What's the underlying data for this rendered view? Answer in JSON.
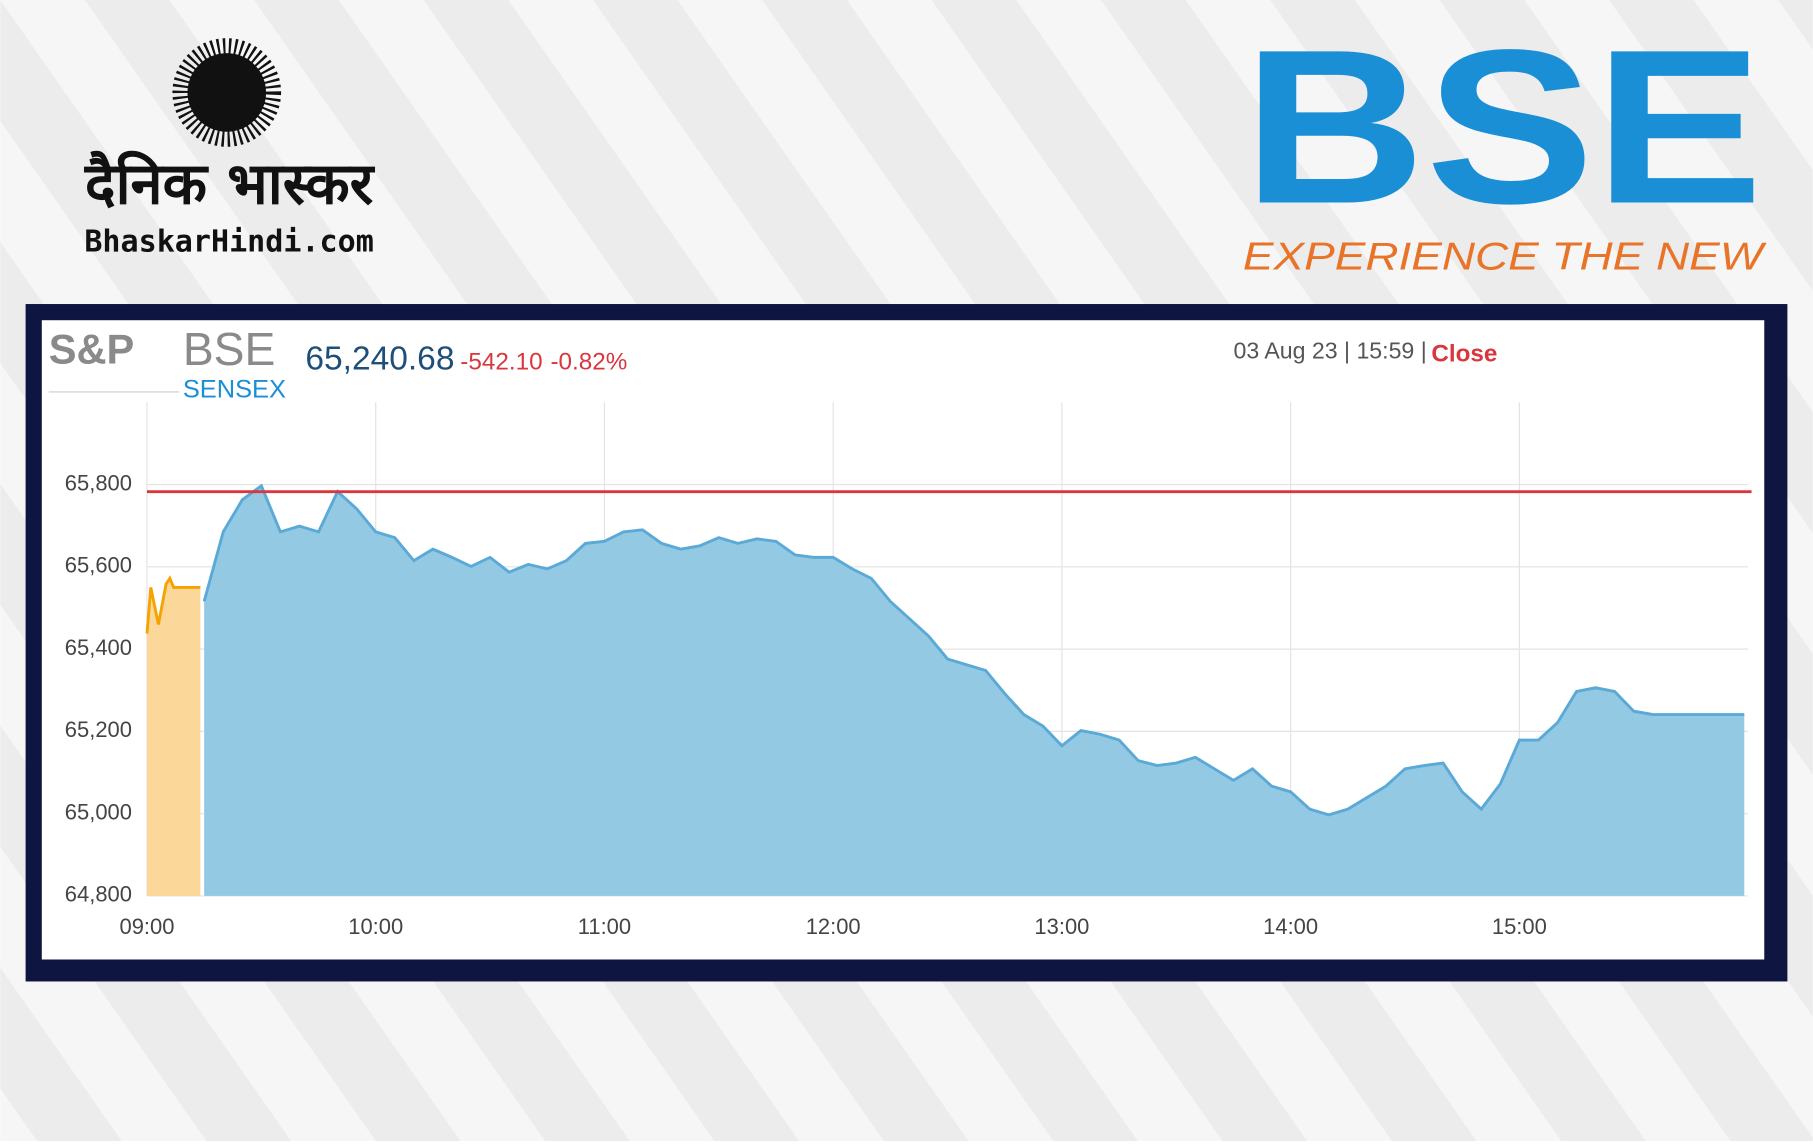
{
  "header": {
    "brand_hindi": "दैनिक भास्कर",
    "brand_site": "BhaskarHindi.com",
    "bse_logo": "BSE",
    "bse_tagline": "EXPERIENCE THE NEW"
  },
  "chart_data": {
    "type": "area",
    "logo_left": "S&P",
    "logo_right": "BSE",
    "logo_sub": "SENSEX",
    "last_value": "65,240.68",
    "change": "-542.10",
    "change_percent": "-0.82%",
    "timestamp": "03 Aug 23 | 15:59 |",
    "status": "Close",
    "xlim": [
      "09:00",
      "16:00"
    ],
    "xticks": [
      "09:00",
      "10:00",
      "11:00",
      "12:00",
      "13:00",
      "14:00",
      "15:00"
    ],
    "ylim": [
      64800,
      66000
    ],
    "yticks": [
      {
        "value": 64800,
        "label": "64,800"
      },
      {
        "value": 65000,
        "label": "65,000"
      },
      {
        "value": 65200,
        "label": "65,200"
      },
      {
        "value": 65400,
        "label": "65,400"
      },
      {
        "value": 65600,
        "label": "65,600"
      },
      {
        "value": 65800,
        "label": "65,800"
      }
    ],
    "grid": true,
    "reference_line": {
      "value": 65782.78,
      "color": "#d9363e"
    },
    "series": [
      {
        "color": "#f5a300",
        "fill": "#fbd79a",
        "x": [
          "09:00",
          "09:01",
          "09:03",
          "09:05",
          "09:06",
          "09:07",
          "09:14"
        ],
        "values": [
          65438,
          65550,
          65460,
          65558,
          65572,
          65550,
          65550
        ]
      },
      {
        "color": "#5aa9d6",
        "fill": "#93c9e3",
        "x": [
          "09:15",
          "09:20",
          "09:25",
          "09:30",
          "09:35",
          "09:40",
          "09:45",
          "09:50",
          "09:55",
          "10:00",
          "10:05",
          "10:10",
          "10:15",
          "10:20",
          "10:25",
          "10:30",
          "10:35",
          "10:40",
          "10:45",
          "10:50",
          "10:55",
          "11:00",
          "11:05",
          "11:10",
          "11:15",
          "11:20",
          "11:25",
          "11:30",
          "11:35",
          "11:40",
          "11:45",
          "11:50",
          "11:55",
          "12:00",
          "12:05",
          "12:10",
          "12:15",
          "12:20",
          "12:25",
          "12:30",
          "12:35",
          "12:40",
          "12:45",
          "12:50",
          "12:55",
          "13:00",
          "13:05",
          "13:10",
          "13:15",
          "13:20",
          "13:25",
          "13:30",
          "13:35",
          "13:40",
          "13:45",
          "13:50",
          "13:55",
          "14:00",
          "14:05",
          "14:10",
          "14:15",
          "14:20",
          "14:25",
          "14:30",
          "14:35",
          "14:40",
          "14:45",
          "14:50",
          "14:55",
          "15:00",
          "15:05",
          "15:10",
          "15:15",
          "15:20",
          "15:25",
          "15:30",
          "15:35",
          "15:59"
        ],
        "values": [
          65516,
          65685,
          65763,
          65797,
          65685,
          65699,
          65685,
          65783,
          65741,
          65685,
          65671,
          65615,
          65643,
          65623,
          65601,
          65623,
          65587,
          65606,
          65595,
          65615,
          65657,
          65662,
          65685,
          65690,
          65657,
          65643,
          65651,
          65671,
          65657,
          65668,
          65662,
          65629,
          65623,
          65623,
          65595,
          65572,
          65516,
          65474,
          65432,
          65376,
          65362,
          65348,
          65292,
          65241,
          65213,
          65165,
          65202,
          65193,
          65179,
          65129,
          65117,
          65123,
          65137,
          65109,
          65081,
          65109,
          65067,
          65053,
          65011,
          64997,
          65011,
          65039,
          65067,
          65109,
          65117,
          65123,
          65053,
          65011,
          65072,
          65179,
          65179,
          65221,
          65297,
          65306,
          65297,
          65249,
          65241,
          65241
        ]
      }
    ]
  }
}
